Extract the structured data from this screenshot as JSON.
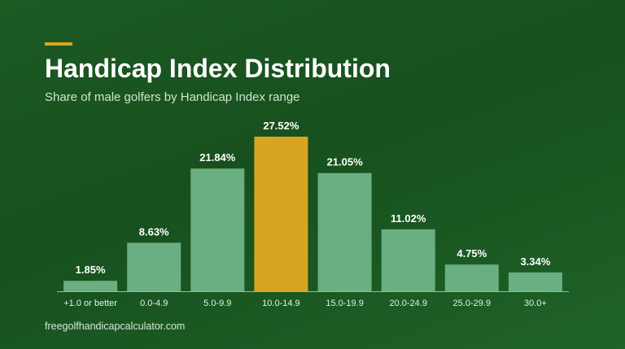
{
  "header": {
    "title": "Handicap Index Distribution",
    "subtitle": "Share of male golfers by Handicap Index range"
  },
  "footer": {
    "source": "freegolfhandicapcalculator.com"
  },
  "colors": {
    "bar": "#6aaf82",
    "highlight": "#d9a521",
    "accent": "#d9a521",
    "axis": "#8fc09a",
    "label": "#ffffff",
    "tick": "#e6f2e6"
  },
  "chart_data": {
    "type": "bar",
    "categories": [
      "+1.0 or better",
      "0.0-4.9",
      "5.0-9.9",
      "10.0-14.9",
      "15.0-19.9",
      "20.0-24.9",
      "25.0-29.9",
      "30.0+"
    ],
    "values": [
      1.85,
      8.63,
      21.84,
      27.52,
      21.05,
      11.02,
      4.75,
      3.34
    ],
    "value_labels": [
      "1.85%",
      "8.63%",
      "21.84%",
      "27.52%",
      "21.05%",
      "11.02%",
      "4.75%",
      "3.34%"
    ],
    "highlight_index": 3,
    "unit": "%",
    "xlabel": "",
    "ylabel": "",
    "ylim": [
      0,
      27.52
    ],
    "grid": false,
    "legend": "none"
  }
}
